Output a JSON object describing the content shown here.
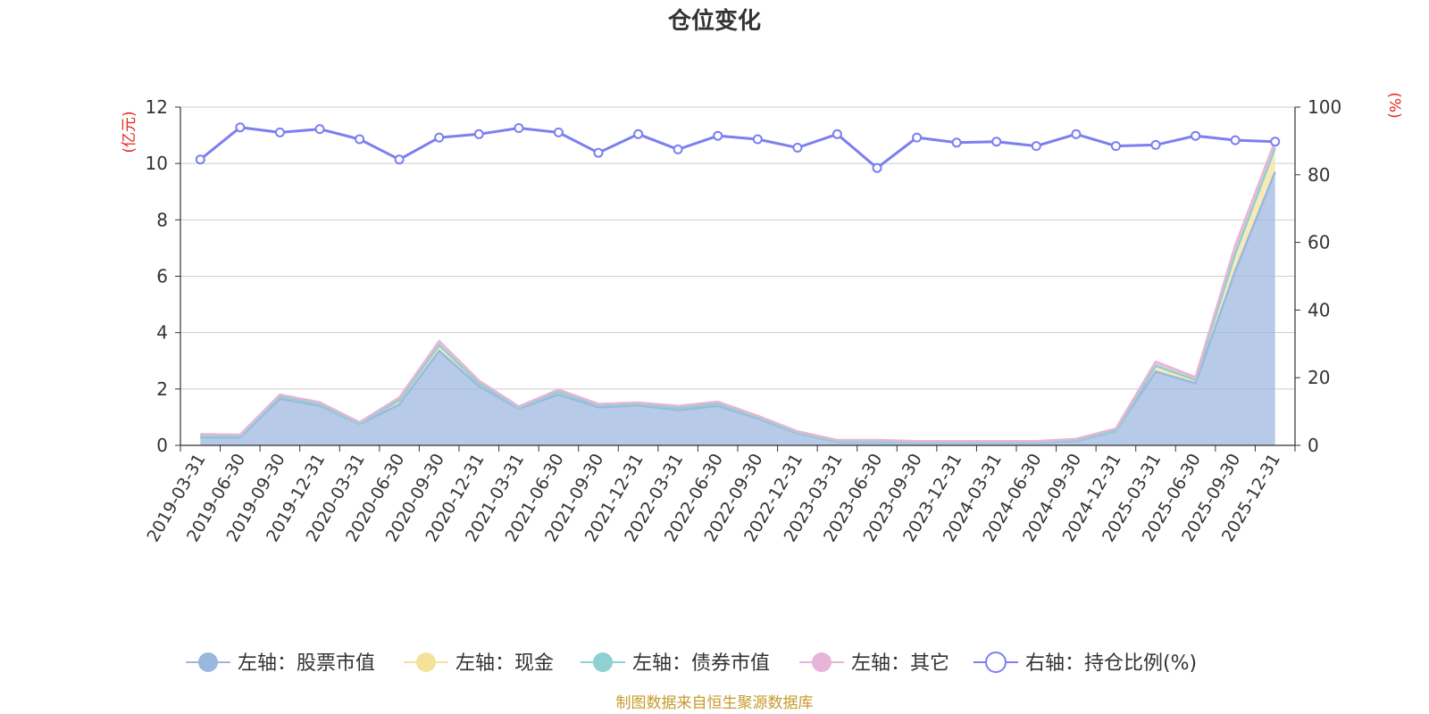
{
  "chart_data": {
    "type": "area",
    "title": "仓位变化",
    "left_axis_unit": "(亿元)",
    "right_axis_unit": "(%)",
    "ylim_left": [
      0,
      12
    ],
    "yticks_left": [
      "0",
      "2",
      "4",
      "6",
      "8",
      "10",
      "12"
    ],
    "ylim_right": [
      0,
      100
    ],
    "yticks_right": [
      "0",
      "20",
      "40",
      "60",
      "80",
      "100"
    ],
    "grid": true,
    "legend_position": "bottom",
    "x": [
      "2019-03-31",
      "2019-06-30",
      "2019-09-30",
      "2019-12-31",
      "2020-03-31",
      "2020-06-30",
      "2020-09-30",
      "2020-12-31",
      "2021-03-31",
      "2021-06-30",
      "2021-09-30",
      "2021-12-31",
      "2022-03-31",
      "2022-06-30",
      "2022-09-30",
      "2022-12-31",
      "2023-03-31",
      "2023-06-30",
      "2023-09-30",
      "2023-12-31",
      "2024-03-31",
      "2024-06-30",
      "2024-09-30",
      "2024-12-31",
      "2025-03-31",
      "2025-06-30",
      "2025-09-30",
      "2025-12-31"
    ],
    "series": [
      {
        "name": "左轴：股票市值",
        "axis": "left",
        "color": "#9bb7e0",
        "values": [
          0.28,
          0.28,
          1.65,
          1.4,
          0.75,
          1.45,
          3.35,
          2.1,
          1.3,
          1.8,
          1.35,
          1.42,
          1.25,
          1.4,
          0.95,
          0.42,
          0.12,
          0.12,
          0.1,
          0.1,
          0.1,
          0.1,
          0.15,
          0.5,
          2.62,
          2.2,
          6.2,
          9.7
        ]
      },
      {
        "name": "左轴：现金",
        "axis": "left",
        "color": "#f5e29a",
        "values": [
          0.05,
          0.05,
          0.08,
          0.05,
          0.02,
          0.15,
          0.2,
          0.1,
          0.03,
          0.1,
          0.07,
          0.05,
          0.07,
          0.08,
          0.05,
          0.03,
          0.02,
          0.02,
          0.02,
          0.02,
          0.02,
          0.02,
          0.03,
          0.03,
          0.2,
          0.12,
          0.6,
          0.85
        ]
      },
      {
        "name": "左轴：债券市值",
        "axis": "left",
        "color": "#8fd1d0",
        "values": [
          0,
          0,
          0,
          0,
          0,
          0,
          0,
          0,
          0,
          0,
          0,
          0,
          0,
          0,
          0,
          0,
          0,
          0,
          0,
          0,
          0,
          0,
          0,
          0,
          0,
          0,
          0,
          0
        ]
      },
      {
        "name": "左轴：其它",
        "axis": "left",
        "color": "#e8b4d8",
        "values": [
          0.07,
          0.05,
          0.07,
          0.08,
          0.05,
          0.1,
          0.15,
          0.1,
          0.05,
          0.08,
          0.05,
          0.05,
          0.08,
          0.07,
          0.05,
          0.05,
          0.05,
          0.05,
          0.03,
          0.03,
          0.03,
          0.03,
          0.05,
          0.07,
          0.15,
          0.1,
          0.3,
          0.25
        ]
      },
      {
        "name": "右轴：持仓比例(%)",
        "axis": "right",
        "color": "#7b7ff0",
        "values": [
          84.5,
          94.0,
          92.5,
          93.5,
          90.5,
          84.5,
          91.0,
          92.0,
          93.8,
          92.5,
          86.5,
          92.0,
          87.5,
          91.5,
          90.5,
          88.0,
          92.0,
          82.0,
          91.0,
          89.5,
          89.8,
          88.5,
          92.0,
          88.5,
          88.8,
          91.5,
          90.2,
          89.8
        ]
      }
    ]
  },
  "footer": {
    "source": "制图数据来自恒生聚源数据库"
  }
}
